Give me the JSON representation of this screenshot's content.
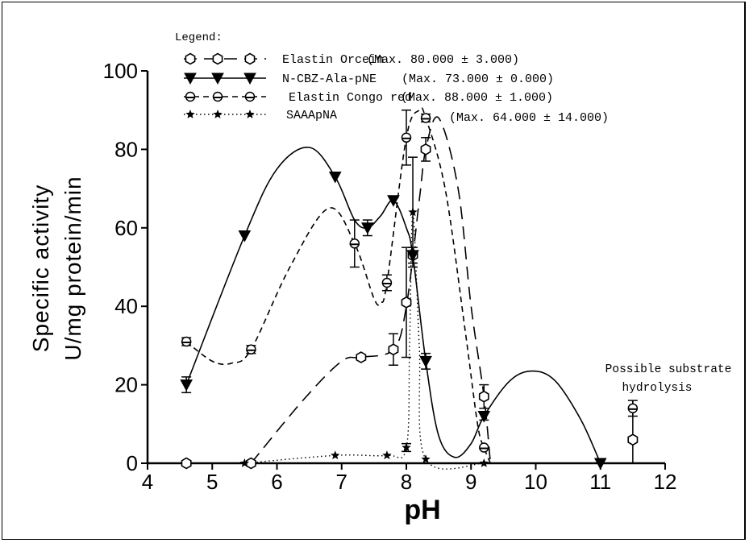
{
  "chart_data": {
    "type": "line",
    "title": "",
    "xlabel": "pH",
    "ylabel_line1": "Specific activity",
    "ylabel_line2": "U/mg protein/min",
    "xlim": [
      4,
      12
    ],
    "ylim": [
      0,
      100
    ],
    "x_ticks": [
      "4",
      "5",
      "6",
      "7",
      "8",
      "9",
      "10",
      "11",
      "12"
    ],
    "y_ticks": [
      "0",
      "20",
      "40",
      "60",
      "80",
      "100"
    ],
    "legend_title": "Legend:",
    "legend": [
      {
        "label": "Elastin Orcein",
        "note": "(Max. 80.000 ± 3.000)"
      },
      {
        "label": "N-CBZ-Ala-pNE",
        "note": "(Max. 73.000 ± 0.000)"
      },
      {
        "label": "Elastin Congo red",
        "note": "(Max. 88.000 ± 1.000)"
      },
      {
        "label": "SAAApNA",
        "note": "(Max. 64.000 ± 14.000)"
      }
    ],
    "annotation_line1": "Possible substrate",
    "annotation_line2": "hydrolysis",
    "series": [
      {
        "name": "Elastin Orcein",
        "marker": "hexagon",
        "line_style": "long-dash",
        "points": [
          [
            4.6,
            0
          ],
          [
            5.6,
            0
          ],
          [
            7.3,
            27
          ],
          [
            7.8,
            29
          ],
          [
            8.0,
            41
          ],
          [
            8.1,
            53
          ],
          [
            8.3,
            80
          ],
          [
            9.2,
            17
          ],
          [
            11.5,
            6
          ]
        ],
        "error": [
          0,
          0,
          0,
          4,
          14,
          0,
          3,
          3,
          0
        ],
        "curve": [
          [
            5.6,
            0
          ],
          [
            6.4,
            16
          ],
          [
            7.0,
            26
          ],
          [
            7.3,
            27
          ],
          [
            7.8,
            29
          ],
          [
            8.0,
            40
          ],
          [
            8.2,
            67
          ],
          [
            8.3,
            80
          ],
          [
            8.5,
            88
          ],
          [
            8.8,
            70
          ],
          [
            9.0,
            40
          ],
          [
            9.2,
            17
          ],
          [
            9.3,
            0
          ]
        ]
      },
      {
        "name": "N-CBZ-Ala-pNE",
        "marker": "down-triangle",
        "line_style": "solid",
        "points": [
          [
            4.6,
            20
          ],
          [
            5.5,
            58
          ],
          [
            6.9,
            73
          ],
          [
            7.4,
            60
          ],
          [
            7.8,
            67
          ],
          [
            8.1,
            53
          ],
          [
            8.3,
            26
          ],
          [
            9.2,
            12
          ],
          [
            11.0,
            0
          ]
        ],
        "error": [
          2,
          0,
          0,
          2,
          0,
          2,
          2,
          1,
          0
        ],
        "curve": [
          [
            4.6,
            20
          ],
          [
            5.5,
            58
          ],
          [
            6.0,
            75
          ],
          [
            6.5,
            80.5
          ],
          [
            6.9,
            73
          ],
          [
            7.2,
            62
          ],
          [
            7.4,
            60
          ],
          [
            7.6,
            63
          ],
          [
            7.8,
            67
          ],
          [
            8.0,
            60
          ],
          [
            8.1,
            53
          ],
          [
            8.3,
            26
          ],
          [
            8.5,
            7
          ],
          [
            8.75,
            1.5
          ],
          [
            9.0,
            5
          ],
          [
            9.2,
            12
          ],
          [
            9.6,
            21
          ],
          [
            9.95,
            23.5
          ],
          [
            10.3,
            21
          ],
          [
            10.7,
            11
          ],
          [
            11.0,
            0
          ]
        ]
      },
      {
        "name": "Elastin Congo red",
        "marker": "half-circle",
        "line_style": "short-dash",
        "points": [
          [
            4.6,
            31
          ],
          [
            5.6,
            29
          ],
          [
            7.2,
            56
          ],
          [
            7.7,
            46
          ],
          [
            8.0,
            83
          ],
          [
            8.3,
            88
          ],
          [
            9.2,
            4
          ],
          [
            11.5,
            14
          ]
        ],
        "error": [
          1,
          1,
          6,
          2,
          7,
          1,
          0,
          2
        ],
        "curve": [
          [
            4.6,
            31
          ],
          [
            5.0,
            26
          ],
          [
            5.3,
            25.5
          ],
          [
            5.6,
            29
          ],
          [
            6.2,
            50
          ],
          [
            6.8,
            65
          ],
          [
            7.2,
            56
          ],
          [
            7.5,
            42
          ],
          [
            7.6,
            41
          ],
          [
            7.7,
            46
          ],
          [
            8.0,
            83
          ],
          [
            8.2,
            90
          ],
          [
            8.3,
            88
          ],
          [
            8.6,
            70
          ],
          [
            8.9,
            35
          ],
          [
            9.1,
            10
          ],
          [
            9.2,
            4
          ],
          [
            9.3,
            0
          ]
        ]
      },
      {
        "name": "SAAApNA",
        "marker": "star",
        "line_style": "dotted",
        "points": [
          [
            5.5,
            0
          ],
          [
            6.9,
            2
          ],
          [
            7.7,
            2
          ],
          [
            8.0,
            4
          ],
          [
            8.1,
            64
          ],
          [
            8.3,
            1
          ],
          [
            9.2,
            0
          ]
        ],
        "error": [
          0,
          0,
          0,
          1,
          14,
          0,
          0
        ],
        "curve": [
          [
            5.5,
            0
          ],
          [
            6.9,
            2
          ],
          [
            7.7,
            2
          ],
          [
            8.0,
            4
          ],
          [
            8.05,
            30
          ],
          [
            8.1,
            64
          ],
          [
            8.2,
            30
          ],
          [
            8.3,
            1
          ],
          [
            9.2,
            0
          ]
        ]
      }
    ]
  }
}
